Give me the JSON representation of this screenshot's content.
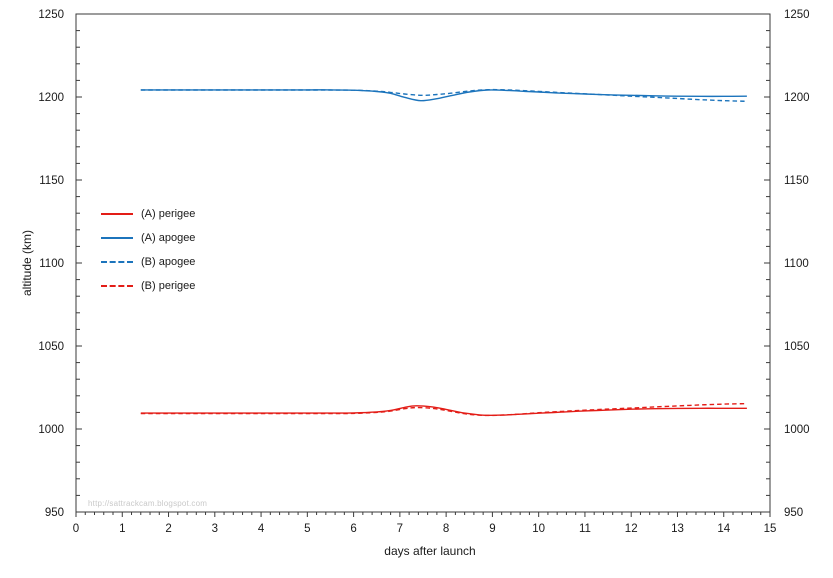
{
  "watermark": "http://sattrackcam.blogspot.com",
  "style": {
    "frame_color": "#3a3a3a",
    "tick_color": "#3a3a3a",
    "text_color": "#1a1a1a",
    "watermark_color": "#c9c9c9",
    "red": "#e31d17",
    "blue": "#1c74bc",
    "background": "#ffffff"
  },
  "axes": {
    "x": {
      "label": "days after launch",
      "min": 0,
      "max": 15,
      "major_step": 1,
      "minor_step": 0.2,
      "tick_labels": [
        "0",
        "1",
        "2",
        "3",
        "4",
        "5",
        "6",
        "7",
        "8",
        "9",
        "10",
        "11",
        "12",
        "13",
        "14",
        "15"
      ]
    },
    "y_left": {
      "label": "altitude (km)",
      "min": 950,
      "max": 1250,
      "major_step": 50,
      "minor_step": 10,
      "tick_labels": [
        "1250",
        "1200",
        "1150",
        "1100",
        "1050",
        "1000",
        "950"
      ]
    },
    "y_right": {
      "label": "",
      "min": 950,
      "max": 1250,
      "major_step": 50,
      "minor_step": 10,
      "tick_labels": [
        "1250",
        "1200",
        "1150",
        "1100",
        "1050",
        "1000",
        "950"
      ]
    }
  },
  "legend": [
    {
      "label": "(A) perigee",
      "color": "#e31d17",
      "dash": "solid"
    },
    {
      "label": "(A) apogee",
      "color": "#1c74bc",
      "dash": "solid"
    },
    {
      "label": "(B) apogee",
      "color": "#1c74bc",
      "dash": "dashed"
    },
    {
      "label": "(B) perigee",
      "color": "#e31d17",
      "dash": "dashed"
    }
  ],
  "chart_data": {
    "type": "line",
    "title": "",
    "xlabel": "days after launch",
    "ylabel": "altitude (km)",
    "xlim": [
      0,
      15
    ],
    "ylim": [
      950,
      1250
    ],
    "grid": false,
    "legend_position": "inside-left",
    "series": [
      {
        "name": "(A) perigee",
        "color": "#e31d17",
        "style": "solid",
        "points": [
          [
            1.4,
            1009.6
          ],
          [
            2,
            1009.6
          ],
          [
            2.5,
            1009.6
          ],
          [
            3,
            1009.6
          ],
          [
            3.5,
            1009.6
          ],
          [
            4,
            1009.6
          ],
          [
            4.5,
            1009.6
          ],
          [
            5,
            1009.6
          ],
          [
            5.5,
            1009.6
          ],
          [
            6,
            1009.7
          ],
          [
            6.5,
            1010.3
          ],
          [
            6.8,
            1011.2
          ],
          [
            7.1,
            1013.0
          ],
          [
            7.35,
            1014.0
          ],
          [
            7.7,
            1013.3
          ],
          [
            8,
            1011.8
          ],
          [
            8.4,
            1009.6
          ],
          [
            8.8,
            1008.3
          ],
          [
            9.2,
            1008.4
          ],
          [
            9.6,
            1008.9
          ],
          [
            10,
            1009.5
          ],
          [
            10.5,
            1010.2
          ],
          [
            11,
            1010.9
          ],
          [
            11.5,
            1011.4
          ],
          [
            12,
            1011.9
          ],
          [
            12.5,
            1012.2
          ],
          [
            13,
            1012.4
          ],
          [
            13.5,
            1012.5
          ],
          [
            14,
            1012.5
          ],
          [
            14.5,
            1012.5
          ]
        ]
      },
      {
        "name": "(A) apogee",
        "color": "#1c74bc",
        "style": "solid",
        "points": [
          [
            1.4,
            1204.3
          ],
          [
            2,
            1204.3
          ],
          [
            2.5,
            1204.3
          ],
          [
            3,
            1204.3
          ],
          [
            3.5,
            1204.3
          ],
          [
            4,
            1204.3
          ],
          [
            4.5,
            1204.3
          ],
          [
            5,
            1204.3
          ],
          [
            5.5,
            1204.3
          ],
          [
            6,
            1204.1
          ],
          [
            6.5,
            1203.3
          ],
          [
            6.8,
            1202.2
          ],
          [
            7.1,
            1199.8
          ],
          [
            7.45,
            1197.8
          ],
          [
            7.8,
            1199.0
          ],
          [
            8.1,
            1200.8
          ],
          [
            8.5,
            1203.0
          ],
          [
            8.9,
            1204.2
          ],
          [
            9.3,
            1204.0
          ],
          [
            9.7,
            1203.4
          ],
          [
            10,
            1203.0
          ],
          [
            10.5,
            1202.3
          ],
          [
            11,
            1201.8
          ],
          [
            11.5,
            1201.3
          ],
          [
            12,
            1201.0
          ],
          [
            12.5,
            1200.7
          ],
          [
            13,
            1200.5
          ],
          [
            13.5,
            1200.4
          ],
          [
            14,
            1200.4
          ],
          [
            14.5,
            1200.5
          ]
        ]
      },
      {
        "name": "(B) apogee",
        "color": "#1c74bc",
        "style": "dashed",
        "points": [
          [
            1.4,
            1204.2
          ],
          [
            2,
            1204.2
          ],
          [
            2.5,
            1204.2
          ],
          [
            3,
            1204.2
          ],
          [
            3.5,
            1204.2
          ],
          [
            4,
            1204.2
          ],
          [
            4.5,
            1204.2
          ],
          [
            5,
            1204.2
          ],
          [
            5.5,
            1204.2
          ],
          [
            6,
            1204.1
          ],
          [
            6.5,
            1203.5
          ],
          [
            6.8,
            1202.8
          ],
          [
            7.1,
            1201.8
          ],
          [
            7.5,
            1201.0
          ],
          [
            7.8,
            1201.5
          ],
          [
            8.1,
            1202.3
          ],
          [
            8.5,
            1203.6
          ],
          [
            8.9,
            1204.4
          ],
          [
            9.3,
            1204.3
          ],
          [
            9.7,
            1203.8
          ],
          [
            10,
            1203.4
          ],
          [
            10.5,
            1202.6
          ],
          [
            11,
            1201.9
          ],
          [
            11.5,
            1201.2
          ],
          [
            12,
            1200.5
          ],
          [
            12.5,
            1199.8
          ],
          [
            13,
            1199.1
          ],
          [
            13.5,
            1198.4
          ],
          [
            14,
            1197.8
          ],
          [
            14.5,
            1197.4
          ]
        ]
      },
      {
        "name": "(B) perigee",
        "color": "#e31d17",
        "style": "dashed",
        "points": [
          [
            1.4,
            1009.3
          ],
          [
            2,
            1009.3
          ],
          [
            2.5,
            1009.3
          ],
          [
            3,
            1009.3
          ],
          [
            3.5,
            1009.3
          ],
          [
            4,
            1009.3
          ],
          [
            4.5,
            1009.3
          ],
          [
            5,
            1009.3
          ],
          [
            5.5,
            1009.3
          ],
          [
            6,
            1009.4
          ],
          [
            6.5,
            1010.0
          ],
          [
            6.8,
            1010.8
          ],
          [
            7.1,
            1012.2
          ],
          [
            7.35,
            1012.9
          ],
          [
            7.7,
            1012.4
          ],
          [
            8,
            1011.2
          ],
          [
            8.4,
            1009.2
          ],
          [
            8.8,
            1008.2
          ],
          [
            9.2,
            1008.4
          ],
          [
            9.6,
            1009.0
          ],
          [
            10,
            1009.8
          ],
          [
            10.5,
            1010.6
          ],
          [
            11,
            1011.3
          ],
          [
            11.5,
            1012.0
          ],
          [
            12,
            1012.6
          ],
          [
            12.5,
            1013.3
          ],
          [
            13,
            1013.9
          ],
          [
            13.5,
            1014.5
          ],
          [
            14,
            1015.0
          ],
          [
            14.5,
            1015.3
          ]
        ]
      }
    ]
  }
}
